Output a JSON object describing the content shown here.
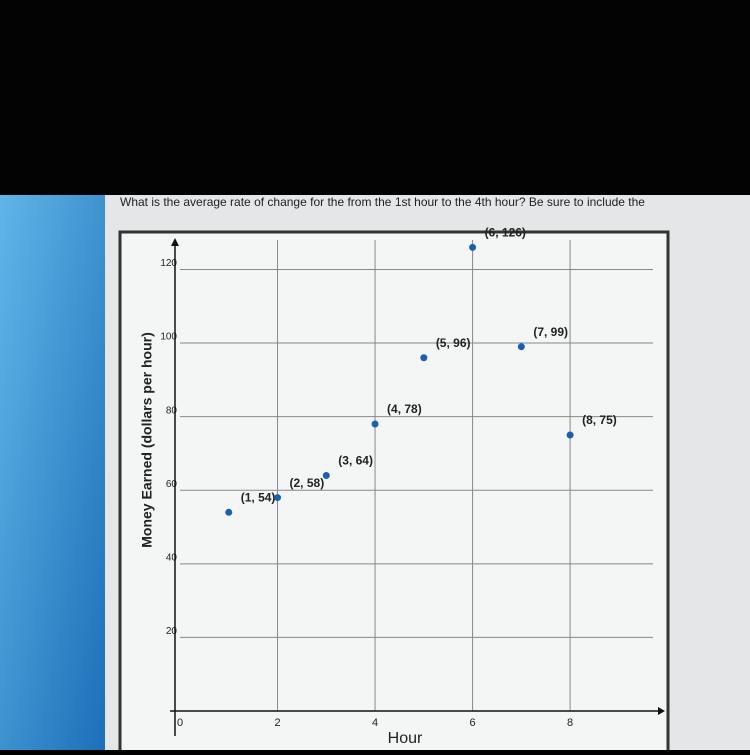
{
  "chart_data": {
    "type": "scatter",
    "title": "What is the average rate of change for the from the 1st hour to the 4th hour? Be sure to include the",
    "x_label": "Hour",
    "y_label": "Money Earned (dollars per hour)",
    "series": [
      {
        "color": "#1a5fb4",
        "x": [
          1,
          2,
          3,
          4,
          5,
          6,
          7,
          8
        ],
        "values": [
          54,
          58,
          64,
          78,
          96,
          126,
          99,
          75
        ],
        "value_labels": [
          "(1, 54)",
          "(2, 58)",
          "(3, 64)",
          "(4, 78)",
          "(5, 96)",
          "(6, 126)",
          "(7, 99)",
          "(8, 75)"
        ]
      }
    ],
    "xlim": [
      0,
      9.7
    ],
    "ylim": [
      0,
      128
    ],
    "xticks": [
      0,
      2,
      4,
      6,
      8
    ],
    "yticks": [
      20,
      40,
      60,
      80,
      100,
      120
    ],
    "grid": true
  }
}
